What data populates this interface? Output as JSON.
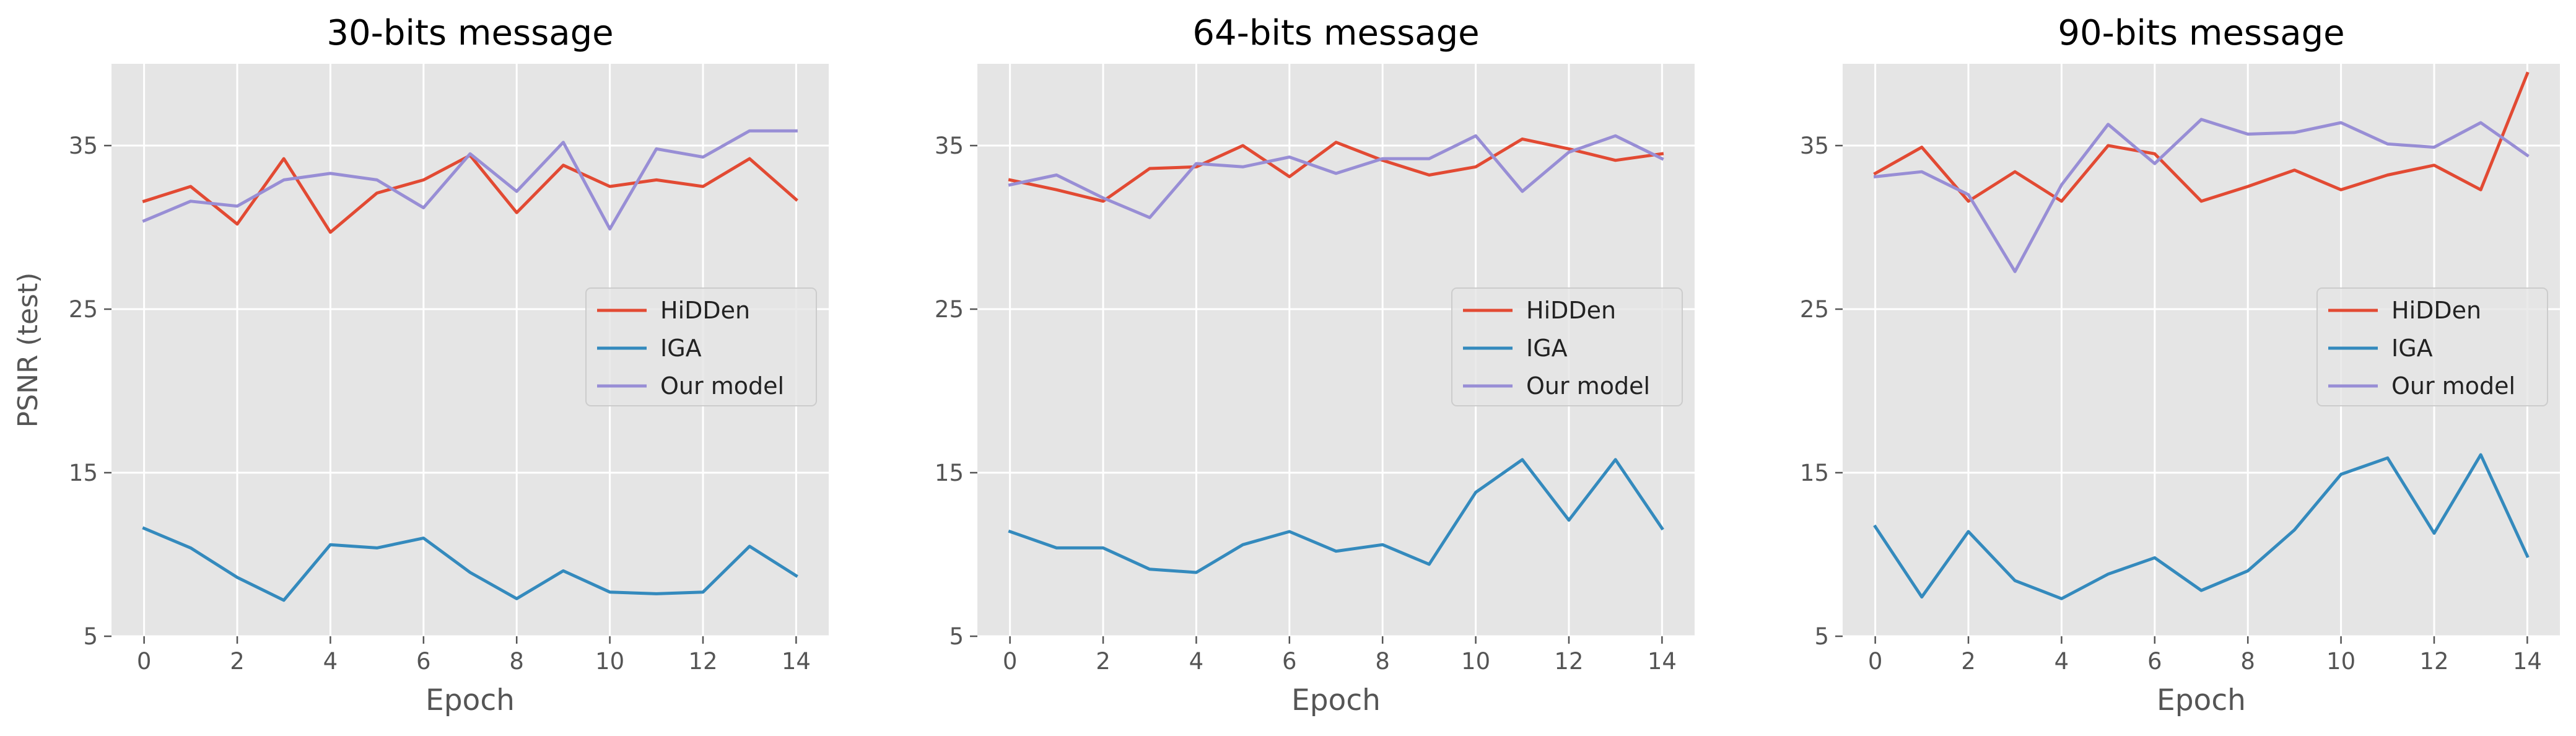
{
  "figure": {
    "ylabel": "PSNR (test)",
    "colors": {
      "axes_bg": "#e5e5e5",
      "grid": "#ffffff",
      "tick_text": "#555555",
      "label_text": "#555555",
      "title_text": "#000000",
      "HiDDen": "#e24a33",
      "IGA": "#348abd",
      "Our model": "#988ed5"
    }
  },
  "chart_data": [
    {
      "type": "line",
      "title": "30-bits message",
      "xlabel": "Epoch",
      "ylabel": "PSNR (test)",
      "xlim": [
        -0.7,
        14.7
      ],
      "ylim": [
        5,
        40
      ],
      "xticks": [
        0,
        2,
        4,
        6,
        8,
        10,
        12,
        14
      ],
      "yticks": [
        5,
        15,
        25,
        35
      ],
      "grid": true,
      "legend_position": "center-right",
      "x": [
        0,
        1,
        2,
        3,
        4,
        5,
        6,
        7,
        8,
        9,
        10,
        11,
        12,
        13,
        14
      ],
      "series": [
        {
          "name": "HiDDen",
          "values": [
            31.6,
            32.5,
            30.2,
            34.2,
            29.7,
            32.1,
            32.9,
            34.4,
            30.9,
            33.8,
            32.5,
            32.9,
            32.5,
            34.2,
            31.7
          ]
        },
        {
          "name": "IGA",
          "values": [
            11.6,
            10.4,
            8.6,
            7.2,
            10.6,
            10.4,
            11.0,
            8.9,
            7.3,
            9.0,
            7.7,
            7.6,
            7.7,
            10.5,
            8.7
          ]
        },
        {
          "name": "Our model",
          "values": [
            30.4,
            31.6,
            31.3,
            32.9,
            33.3,
            32.9,
            31.2,
            34.5,
            32.2,
            35.2,
            29.9,
            34.8,
            34.3,
            35.9,
            35.9
          ]
        }
      ]
    },
    {
      "type": "line",
      "title": "64-bits message",
      "xlabel": "Epoch",
      "ylabel": "",
      "xlim": [
        -0.7,
        14.7
      ],
      "ylim": [
        5,
        40
      ],
      "xticks": [
        0,
        2,
        4,
        6,
        8,
        10,
        12,
        14
      ],
      "yticks": [
        5,
        15,
        25,
        35
      ],
      "grid": true,
      "legend_position": "center-right",
      "x": [
        0,
        1,
        2,
        3,
        4,
        5,
        6,
        7,
        8,
        9,
        10,
        11,
        12,
        13,
        14
      ],
      "series": [
        {
          "name": "HiDDen",
          "values": [
            32.9,
            32.3,
            31.6,
            33.6,
            33.7,
            35.0,
            33.1,
            35.2,
            34.1,
            33.2,
            33.7,
            35.4,
            34.8,
            34.1,
            34.5
          ]
        },
        {
          "name": "IGA",
          "values": [
            11.4,
            10.4,
            10.4,
            9.1,
            8.9,
            10.6,
            11.4,
            10.2,
            10.6,
            9.4,
            13.8,
            15.8,
            12.1,
            15.8,
            11.6
          ]
        },
        {
          "name": "Our model",
          "values": [
            32.6,
            33.2,
            31.8,
            30.6,
            33.9,
            33.7,
            34.3,
            33.3,
            34.2,
            34.2,
            35.6,
            32.2,
            34.6,
            35.6,
            34.2
          ]
        }
      ]
    },
    {
      "type": "line",
      "title": "90-bits message",
      "xlabel": "Epoch",
      "ylabel": "",
      "xlim": [
        -0.7,
        14.7
      ],
      "ylim": [
        5,
        40
      ],
      "xticks": [
        0,
        2,
        4,
        6,
        8,
        10,
        12,
        14
      ],
      "yticks": [
        5,
        15,
        25,
        35
      ],
      "grid": true,
      "legend_position": "center-right",
      "x": [
        0,
        1,
        2,
        3,
        4,
        5,
        6,
        7,
        8,
        9,
        10,
        11,
        12,
        13,
        14
      ],
      "series": [
        {
          "name": "HiDDen",
          "values": [
            33.3,
            34.9,
            31.6,
            33.4,
            31.6,
            35.0,
            34.5,
            31.6,
            32.5,
            33.5,
            32.3,
            33.2,
            33.8,
            32.3,
            39.4
          ]
        },
        {
          "name": "IGA",
          "values": [
            11.7,
            7.4,
            11.4,
            8.4,
            7.3,
            8.8,
            9.8,
            7.8,
            9.0,
            11.5,
            14.9,
            15.9,
            11.3,
            16.1,
            9.9
          ]
        },
        {
          "name": "Our model",
          "values": [
            33.1,
            33.4,
            32.0,
            27.3,
            32.6,
            36.3,
            33.9,
            36.6,
            35.7,
            35.8,
            36.4,
            35.1,
            34.9,
            36.4,
            34.4
          ]
        }
      ]
    }
  ]
}
